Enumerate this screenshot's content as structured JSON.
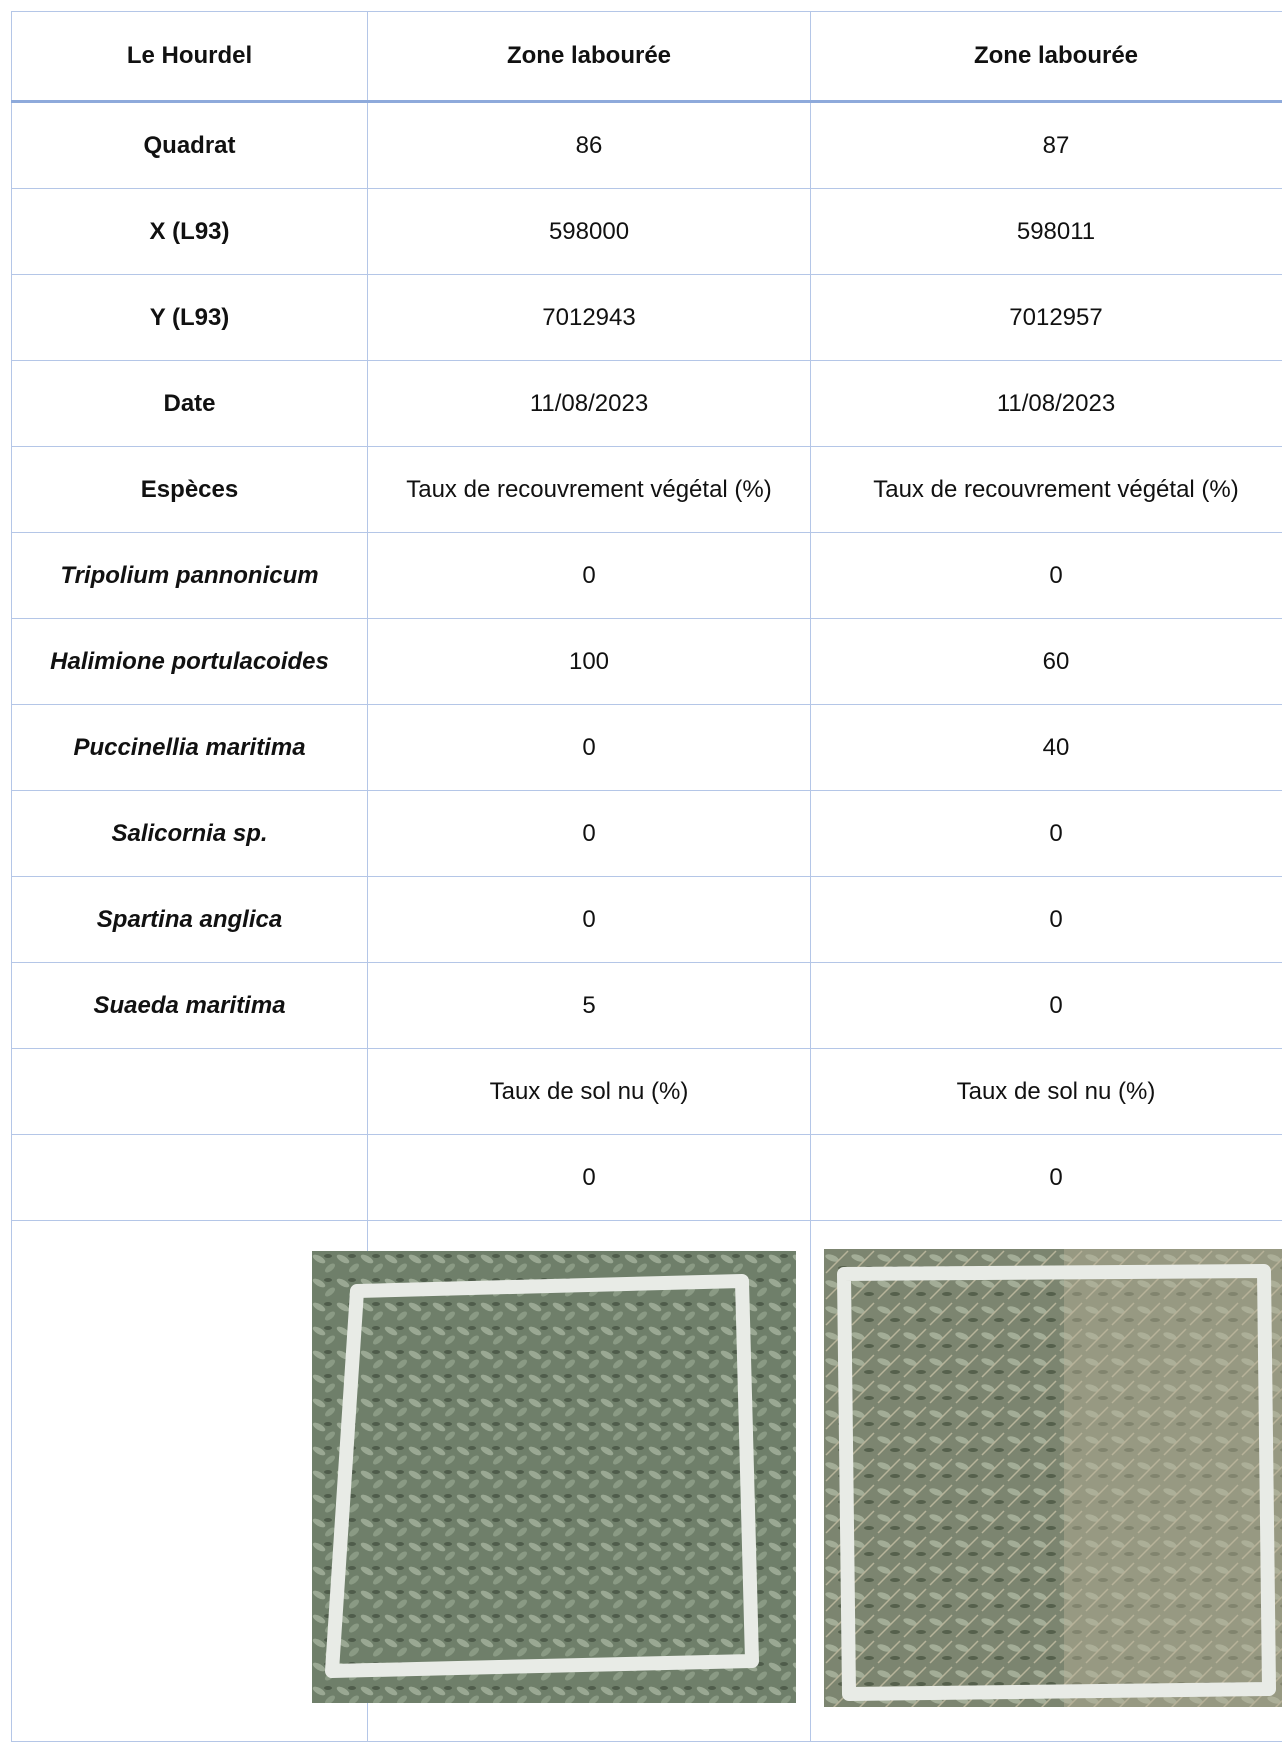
{
  "table": {
    "header": [
      "Le Hourdel",
      "Zone labourée",
      "Zone labourée"
    ],
    "rows": [
      [
        "Quadrat",
        "86",
        "87"
      ],
      [
        "X (L93)",
        "598000",
        "598011"
      ],
      [
        "Y (L93)",
        "7012943",
        "7012957"
      ],
      [
        "Date",
        "11/08/2023",
        "11/08/2023"
      ],
      [
        "Espèces",
        "Taux de recouvrement végétal (%)",
        "Taux de recouvrement végétal (%)"
      ]
    ],
    "species_rows": [
      [
        "Tripolium pannonicum",
        "0",
        "0"
      ],
      [
        "Halimione portulacoides",
        "100",
        "60"
      ],
      [
        "Puccinellia maritima",
        "0",
        "40"
      ],
      [
        "Salicornia sp.",
        "0",
        "0"
      ],
      [
        "Spartina anglica",
        "0",
        "0"
      ],
      [
        "Suaeda maritima",
        "5",
        "0"
      ]
    ],
    "bare_soil_rows": [
      [
        null,
        "Taux de sol nu (%)",
        "Taux de sol nu (%)"
      ],
      [
        null,
        "0",
        "0"
      ]
    ]
  }
}
